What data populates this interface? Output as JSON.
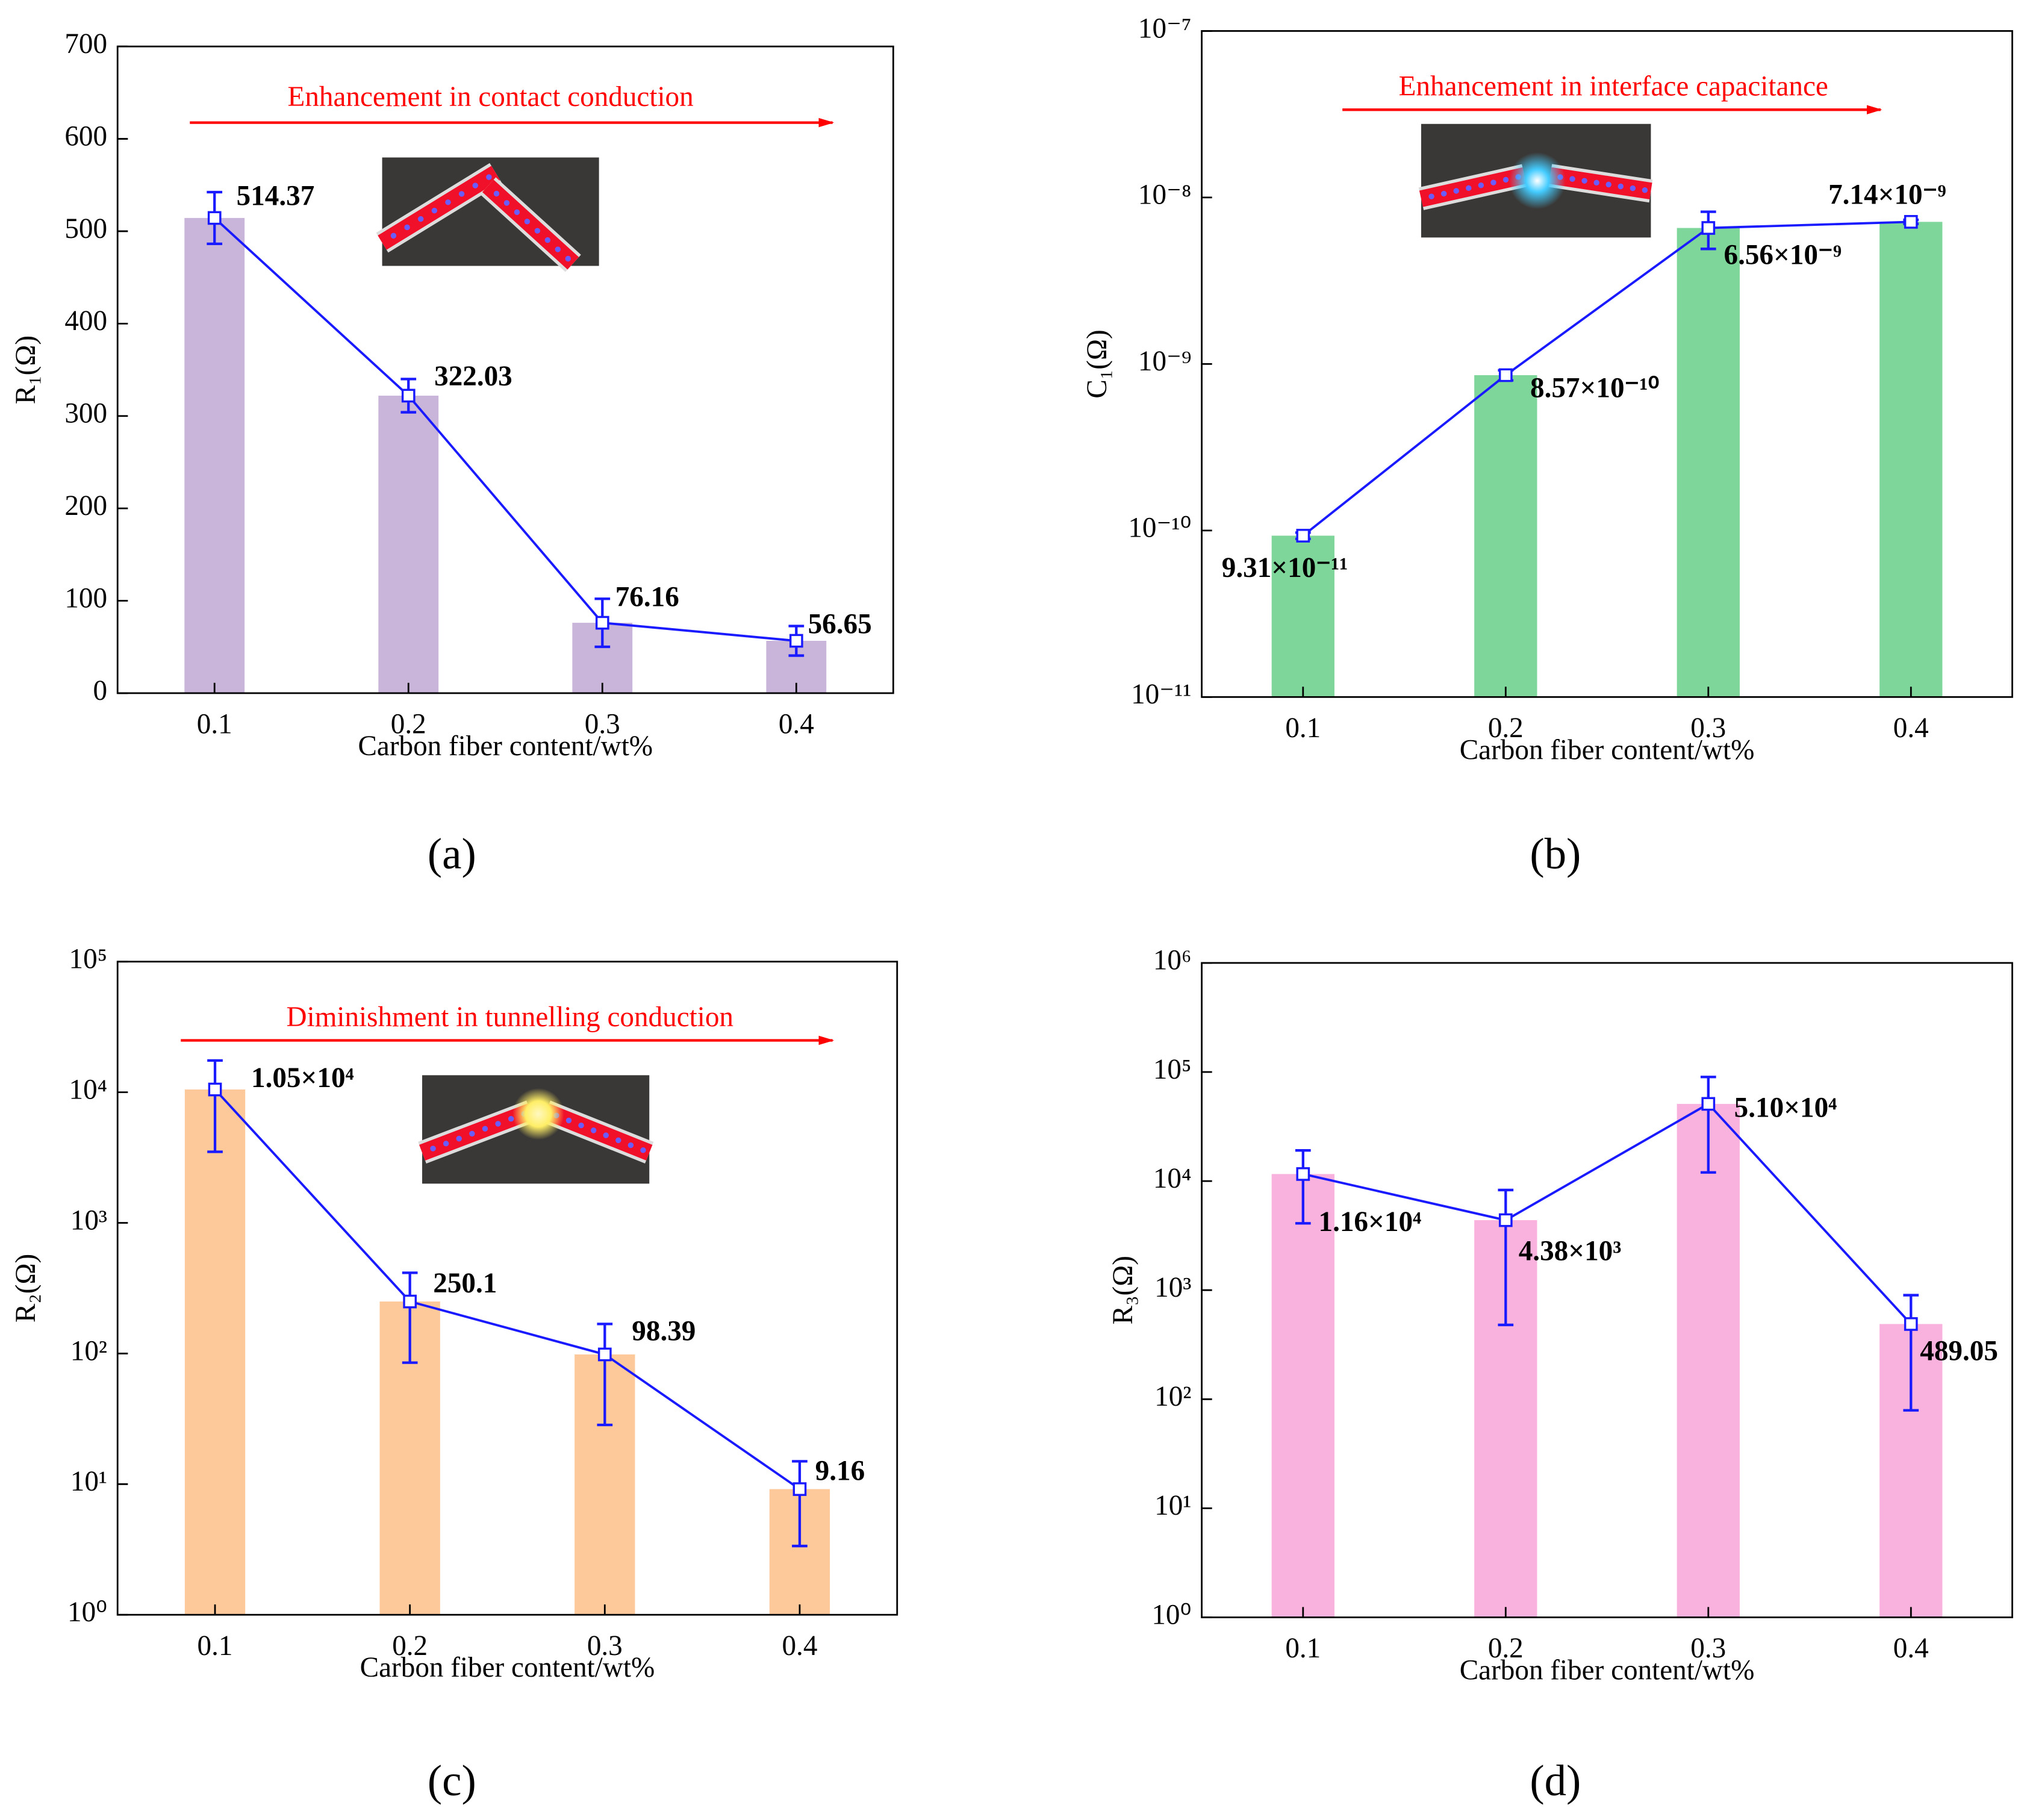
{
  "chart_data": [
    {
      "type": "bar",
      "panel_label": "(a)",
      "xlabel": "Carbon fiber content/wt%",
      "ylabel": "R₁(Ω)",
      "annotation": "Enhancement in contact conduction",
      "categories": [
        "0.1",
        "0.2",
        "0.3",
        "0.4"
      ],
      "values": [
        514.37,
        322.03,
        76.16,
        56.65
      ],
      "errors": [
        28,
        18,
        26,
        16
      ],
      "color": "#c9b4da",
      "line_color": "#1a1aff",
      "log_scale": false,
      "ylim": [
        0,
        700
      ],
      "yticks": [
        0,
        100,
        200,
        300,
        400,
        500,
        600,
        700
      ]
    },
    {
      "type": "bar",
      "panel_label": "(b)",
      "xlabel": "Carbon fiber content/wt%",
      "ylabel": "C₁(Ω)",
      "annotation": "Enhancement in interface capacitance",
      "categories": [
        "0.1",
        "0.2",
        "0.3",
        "0.4"
      ],
      "values": [
        9.31e-11,
        8.57e-10,
        6.56e-09,
        7.14e-09
      ],
      "value_labels": [
        "9.31×10⁻¹¹",
        "8.57×10⁻¹⁰",
        "6.56×10⁻⁹",
        "7.14×10⁻⁹"
      ],
      "errors": [
        4e-12,
        6e-11,
        1.65e-09,
        2e-10
      ],
      "color": "#7fd69b",
      "line_color": "#1a1aff",
      "log_scale": true,
      "ylim": [
        1e-11,
        1e-07
      ],
      "yticks": [
        {
          "value": 1e-11,
          "label": "10⁻¹¹"
        },
        {
          "value": 1e-10,
          "label": "10⁻¹⁰"
        },
        {
          "value": 1e-09,
          "label": "10⁻⁹"
        },
        {
          "value": 1e-08,
          "label": "10⁻⁸"
        },
        {
          "value": 1e-07,
          "label": "10⁻⁷"
        }
      ]
    },
    {
      "type": "bar",
      "panel_label": "(c)",
      "xlabel": "Carbon fiber content/wt%",
      "ylabel": "R₂(Ω)",
      "annotation": "Diminishment in tunnelling conduction",
      "categories": [
        "0.1",
        "0.2",
        "0.3",
        "0.4"
      ],
      "values": [
        10500,
        250.1,
        98.39,
        9.16
      ],
      "value_labels": [
        "1.05×10⁴",
        "250.1",
        "98.39",
        "9.16"
      ],
      "errors": [
        7000,
        165,
        70,
        5.8
      ],
      "color": "#fdc99a",
      "line_color": "#1a1aff",
      "log_scale": true,
      "ylim": [
        1,
        100000
      ],
      "yticks": [
        {
          "value": 1,
          "label": "10⁰"
        },
        {
          "value": 10,
          "label": "10¹"
        },
        {
          "value": 100,
          "label": "10²"
        },
        {
          "value": 1000,
          "label": "10³"
        },
        {
          "value": 10000,
          "label": "10⁴"
        },
        {
          "value": 100000,
          "label": "10⁵"
        }
      ]
    },
    {
      "type": "bar",
      "panel_label": "(d)",
      "xlabel": "Carbon fiber content/wt%",
      "ylabel": "R₃(Ω)",
      "categories": [
        "0.1",
        "0.2",
        "0.3",
        "0.4"
      ],
      "values": [
        11600,
        4380,
        51000,
        489.05
      ],
      "value_labels": [
        "1.16×10⁴",
        "4.38×10³",
        "5.10×10⁴",
        "489.05"
      ],
      "errors": [
        7500,
        3900,
        39000,
        410
      ],
      "color": "#f9b2dd",
      "line_color": "#1a1aff",
      "log_scale": true,
      "ylim": [
        1,
        1000000
      ],
      "yticks": [
        {
          "value": 1,
          "label": "10⁰"
        },
        {
          "value": 10,
          "label": "10¹"
        },
        {
          "value": 100,
          "label": "10²"
        },
        {
          "value": 1000,
          "label": "10³"
        },
        {
          "value": 10000,
          "label": "10⁴"
        },
        {
          "value": 100000,
          "label": "10⁵"
        },
        {
          "value": 1000000,
          "label": "10⁶"
        }
      ]
    }
  ]
}
